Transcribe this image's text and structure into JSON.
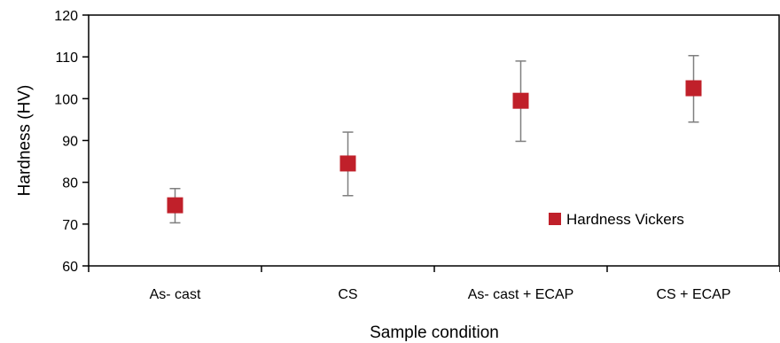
{
  "chart_data": {
    "type": "scatter",
    "title": "",
    "xlabel": "Sample condition",
    "ylabel": "Hardness (HV)",
    "categories": [
      "As- cast",
      "CS",
      "As- cast + ECAP",
      "CS + ECAP"
    ],
    "ylim": [
      60,
      120
    ],
    "yticks": [
      60,
      70,
      80,
      90,
      100,
      110,
      120
    ],
    "grid": false,
    "legend_position": "lower-right",
    "series": [
      {
        "name": "Hardness Vickers",
        "color": "#c0202a",
        "marker": "square",
        "values": [
          74.5,
          84.5,
          99.5,
          102.5
        ],
        "error_upper": [
          78.5,
          92.0,
          109.0,
          110.3
        ],
        "error_lower": [
          70.3,
          76.8,
          89.8,
          94.4
        ]
      }
    ]
  }
}
